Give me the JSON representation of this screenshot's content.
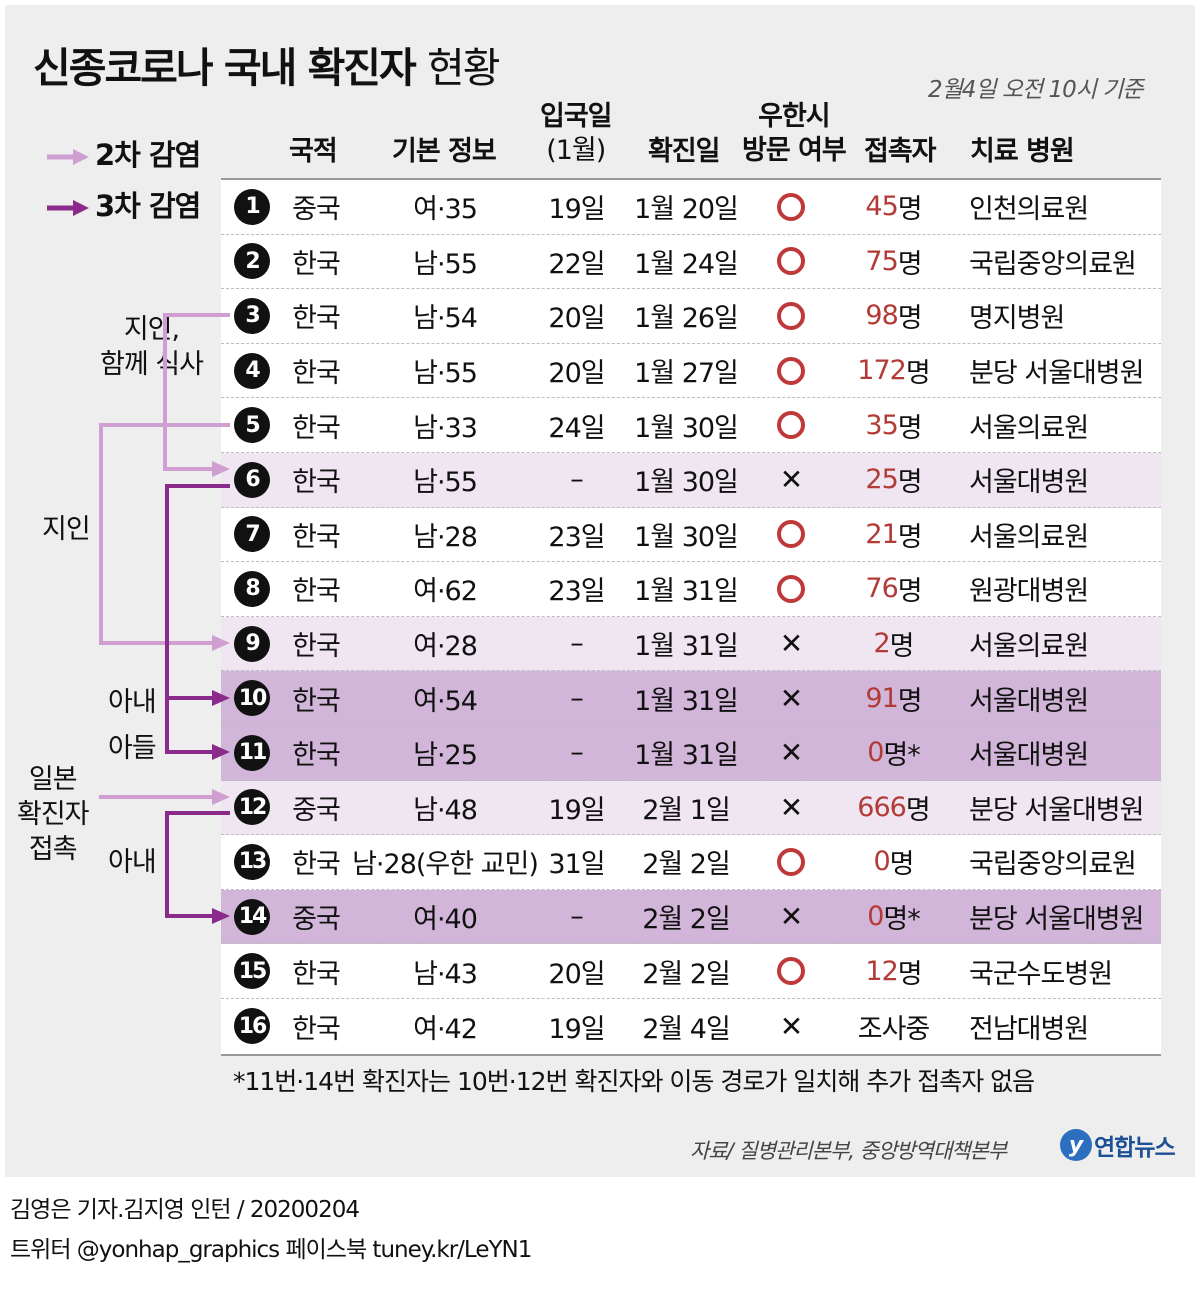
{
  "title": "신종코로나 국내 확진자",
  "title_sub": "현황",
  "basis_time": "2월4일 오전 10시 기준",
  "legend": [
    {
      "label": "2차 감염",
      "color": "#cf9fd2"
    },
    {
      "label": "3차 감염",
      "color": "#8a2a8a"
    }
  ],
  "headers": {
    "nationality": "국적",
    "basic_info": "기본 정보",
    "entry_line1": "입국일",
    "entry_line2": "(1월)",
    "confirmed": "확진일",
    "visit_line1": "우한시",
    "visit_line2": "방문 여부",
    "contacts": "접촉자",
    "hospital": "치료 병원"
  },
  "rows": [
    {
      "no": "1",
      "nationality": "중국",
      "info": "여·35",
      "entry": "19일",
      "confirmed": "1월 20일",
      "visited": "O",
      "contacts_num": "45",
      "contacts_unit": "명",
      "hospital": "인천의료원",
      "highlight": "none"
    },
    {
      "no": "2",
      "nationality": "한국",
      "info": "남·55",
      "entry": "22일",
      "confirmed": "1월 24일",
      "visited": "O",
      "contacts_num": "75",
      "contacts_unit": "명",
      "hospital": "국립중앙의료원",
      "highlight": "none"
    },
    {
      "no": "3",
      "nationality": "한국",
      "info": "남·54",
      "entry": "20일",
      "confirmed": "1월 26일",
      "visited": "O",
      "contacts_num": "98",
      "contacts_unit": "명",
      "hospital": "명지병원",
      "highlight": "none"
    },
    {
      "no": "4",
      "nationality": "한국",
      "info": "남·55",
      "entry": "20일",
      "confirmed": "1월 27일",
      "visited": "O",
      "contacts_num": "172",
      "contacts_unit": "명",
      "hospital": "분당 서울대병원",
      "highlight": "none"
    },
    {
      "no": "5",
      "nationality": "한국",
      "info": "남·33",
      "entry": "24일",
      "confirmed": "1월 30일",
      "visited": "O",
      "contacts_num": "35",
      "contacts_unit": "명",
      "hospital": "서울의료원",
      "highlight": "none"
    },
    {
      "no": "6",
      "nationality": "한국",
      "info": "남·55",
      "entry": "–",
      "confirmed": "1월 30일",
      "visited": "X",
      "contacts_num": "25",
      "contacts_unit": "명",
      "hospital": "서울대병원",
      "highlight": "light"
    },
    {
      "no": "7",
      "nationality": "한국",
      "info": "남·28",
      "entry": "23일",
      "confirmed": "1월 30일",
      "visited": "O",
      "contacts_num": "21",
      "contacts_unit": "명",
      "hospital": "서울의료원",
      "highlight": "none"
    },
    {
      "no": "8",
      "nationality": "한국",
      "info": "여·62",
      "entry": "23일",
      "confirmed": "1월 31일",
      "visited": "O",
      "contacts_num": "76",
      "contacts_unit": "명",
      "hospital": "원광대병원",
      "highlight": "none"
    },
    {
      "no": "9",
      "nationality": "한국",
      "info": "여·28",
      "entry": "–",
      "confirmed": "1월 31일",
      "visited": "X",
      "contacts_num": "2",
      "contacts_unit": "명",
      "hospital": "서울의료원",
      "highlight": "light"
    },
    {
      "no": "10",
      "nationality": "한국",
      "info": "여·54",
      "entry": "–",
      "confirmed": "1월 31일",
      "visited": "X",
      "contacts_num": "91",
      "contacts_unit": "명",
      "hospital": "서울대병원",
      "highlight": "dark"
    },
    {
      "no": "11",
      "nationality": "한국",
      "info": "남·25",
      "entry": "–",
      "confirmed": "1월 31일",
      "visited": "X",
      "contacts_num": "0",
      "contacts_unit": "명*",
      "hospital": "서울대병원",
      "highlight": "dark"
    },
    {
      "no": "12",
      "nationality": "중국",
      "info": "남·48",
      "entry": "19일",
      "confirmed": "2월 1일",
      "visited": "X",
      "contacts_num": "666",
      "contacts_unit": "명",
      "hospital": "분당 서울대병원",
      "highlight": "light"
    },
    {
      "no": "13",
      "nationality": "한국",
      "info": "남·28(우한 교민)",
      "entry": "31일",
      "confirmed": "2월 2일",
      "visited": "O",
      "contacts_num": "0",
      "contacts_unit": "명",
      "hospital": "국립중앙의료원",
      "highlight": "none"
    },
    {
      "no": "14",
      "nationality": "중국",
      "info": "여·40",
      "entry": "–",
      "confirmed": "2월 2일",
      "visited": "X",
      "contacts_num": "0",
      "contacts_unit": "명*",
      "hospital": "분당 서울대병원",
      "highlight": "dark"
    },
    {
      "no": "15",
      "nationality": "한국",
      "info": "남·43",
      "entry": "20일",
      "confirmed": "2월 2일",
      "visited": "O",
      "contacts_num": "12",
      "contacts_unit": "명",
      "hospital": "국군수도병원",
      "highlight": "none"
    },
    {
      "no": "16",
      "nationality": "한국",
      "info": "여·42",
      "entry": "19일",
      "confirmed": "2월 4일",
      "visited": "X",
      "contacts_num": "",
      "contacts_unit": "조사중",
      "hospital": "전남대병원",
      "highlight": "none"
    }
  ],
  "relations": {
    "acquaintance_meal_line1": "지인,",
    "acquaintance_meal_line2": "함께 식사",
    "acquaintance": "지인",
    "wife_10": "아내",
    "son_11": "아들",
    "japan_line1": "일본",
    "japan_line2": "확진자",
    "japan_line3": "접촉",
    "wife_14": "아내"
  },
  "footnote": "*11번·14번 확진자는 10번·12번 확진자와 이동 경로가 일치해 추가 접촉자 없음",
  "source": "자료/ 질병관리본부, 중앙방역대책본부",
  "logo_text": "연합뉴스",
  "credit_line1": "김영은 기자.김지영 인턴 / 20200204",
  "credit_line2": "트위터 @yonhap_graphics  페이스북 tuney.kr/LeYN1"
}
